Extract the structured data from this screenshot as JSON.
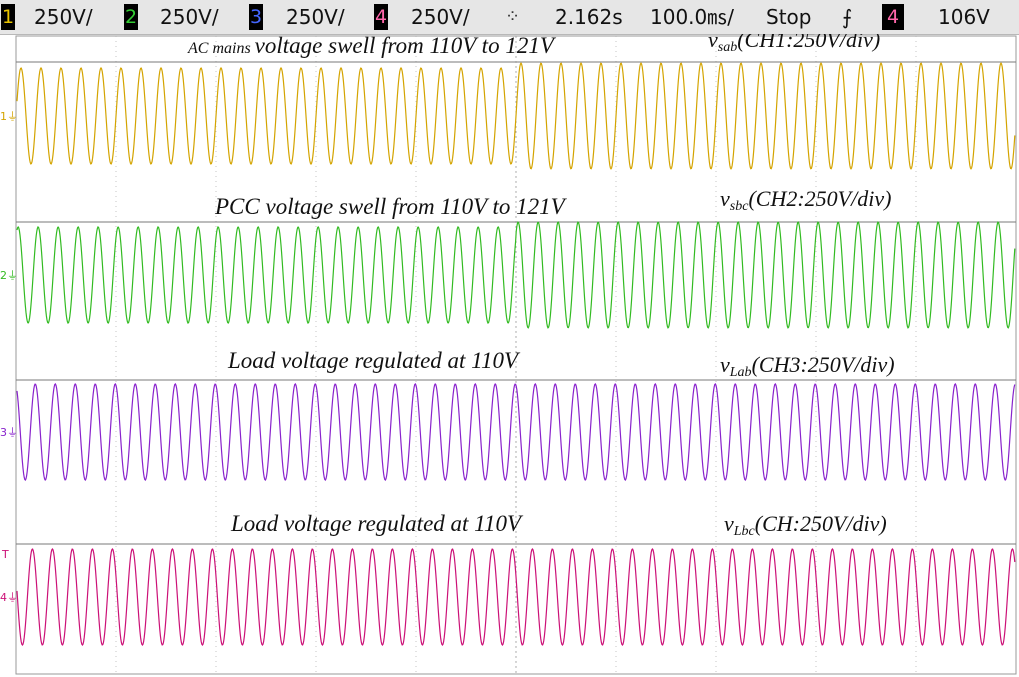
{
  "status_bar": {
    "channels": [
      {
        "number": "1",
        "scale": "250V/",
        "color": "#e8c400"
      },
      {
        "number": "2",
        "scale": "250V/",
        "color": "#33cc33"
      },
      {
        "number": "3",
        "scale": "250V/",
        "color": "#4466ff"
      },
      {
        "number": "4",
        "scale": "250V/",
        "color": "#ff66aa"
      }
    ],
    "acquire_icon": "acquisition-icon",
    "time_position": "2.162s",
    "time_scale": "100.0㎳/",
    "run_state": "Stop",
    "trigger_edge_icon": "falling-edge-icon",
    "trigger_source": "4",
    "trigger_level": "106V"
  },
  "chart_data": {
    "type": "line",
    "ylabel_unit": "V",
    "grid": true,
    "cycles_visible": 50,
    "series": [
      {
        "channel": "CH1",
        "color": "#d4a400",
        "caption": "AC mains voltage swell from 110V to 121V",
        "caption_prefix": "AC mains",
        "caption_rest": "voltage swell from 110V to 121V",
        "name_base": "v",
        "name_sub": "sab",
        "name_tail": "(CH1:250V/div)",
        "amplitude_before_swell": 110,
        "amplitude_after_swell": 121,
        "swell_at_fraction": 0.5
      },
      {
        "channel": "CH2",
        "color": "#33bb22",
        "caption": "PCC voltage swell from 110V to 121V",
        "name_base": "v",
        "name_sub": "sbc",
        "name_tail": "(CH2:250V/div)",
        "amplitude_before_swell": 110,
        "amplitude_after_swell": 121,
        "swell_at_fraction": 0.5
      },
      {
        "channel": "CH3",
        "color": "#8822cc",
        "caption": "Load voltage regulated at 110V",
        "name_base": "v",
        "name_sub": "Lab",
        "name_tail": "(CH3:250V/div)",
        "amplitude_before_swell": 110,
        "amplitude_after_swell": 110,
        "swell_at_fraction": 0.5
      },
      {
        "channel": "CH4",
        "color": "#cc1177",
        "caption": "Load voltage regulated at 110V",
        "name_base": "v",
        "name_sub": "Lbc",
        "name_tail": "(CH:250V/div)",
        "amplitude_before_swell": 110,
        "amplitude_after_swell": 110,
        "swell_at_fraction": 0.5
      }
    ],
    "ground_markers": [
      "1",
      "2",
      "3",
      "4"
    ],
    "trigger_marker": "T"
  }
}
